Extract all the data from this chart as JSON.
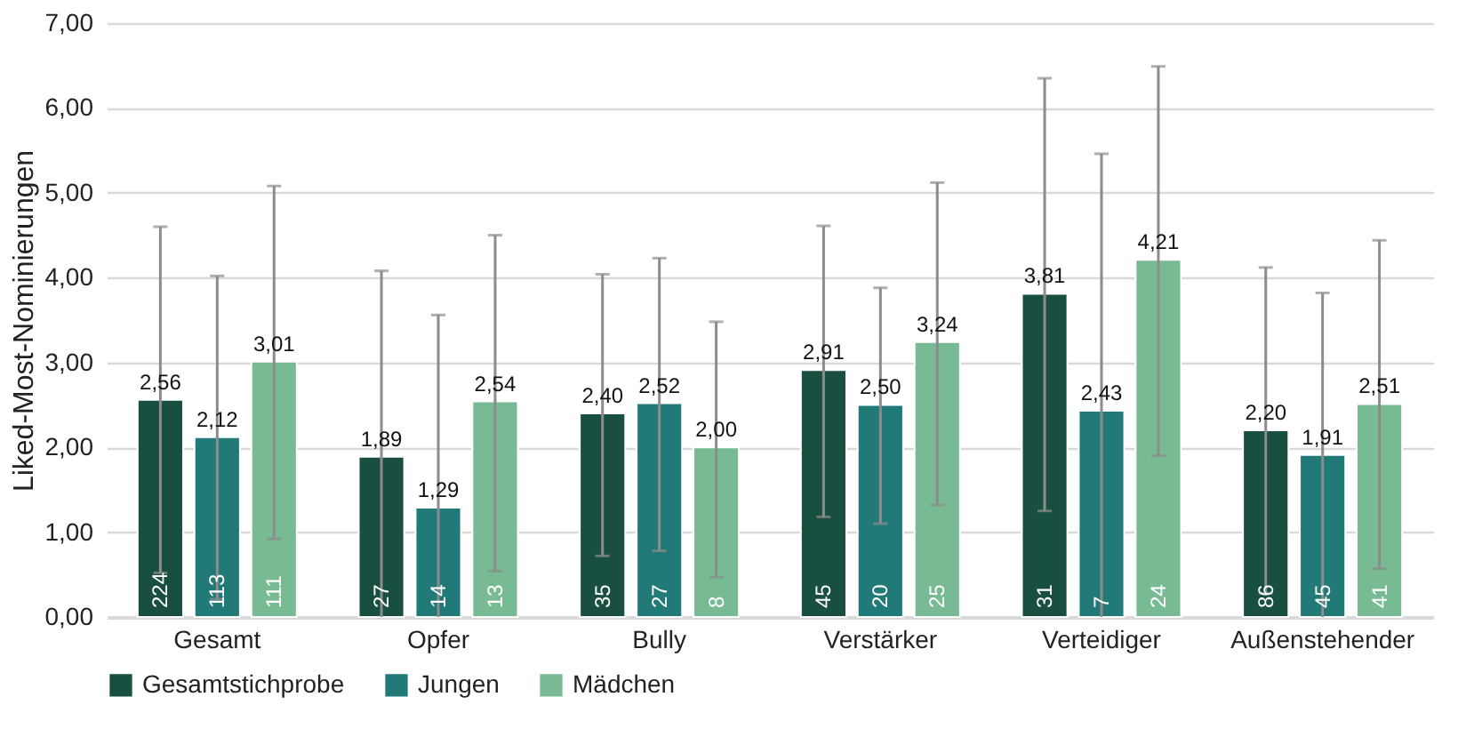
{
  "chart_data": {
    "type": "bar",
    "ylabel": "Liked-Most-Nominierungen",
    "categories": [
      "Gesamt",
      "Opfer",
      "Bully",
      "Verstärker",
      "Verteidiger",
      "Außenstehender"
    ],
    "series": [
      {
        "name": "Gesamtstichprobe",
        "color": "#184f40",
        "values": [
          2.56,
          1.89,
          2.4,
          2.91,
          3.81,
          2.2
        ],
        "value_labels": [
          "2,56",
          "1,89",
          "2,40",
          "2,91",
          "3,81",
          "2,20"
        ],
        "errors": [
          [
            0.52,
            4.6
          ],
          [
            0,
            4.08
          ],
          [
            0.72,
            4.04
          ],
          [
            1.18,
            4.61
          ],
          [
            1.25,
            6.35
          ],
          [
            0.28,
            4.12
          ]
        ]
      },
      {
        "name": "Jungen",
        "color": "#217a78",
        "values": [
          2.12,
          1.29,
          2.52,
          2.5,
          2.43,
          1.91
        ],
        "value_labels": [
          "2,12",
          "1,29",
          "2,52",
          "2,50",
          "2,43",
          "1,91"
        ],
        "errors": [
          [
            0.21,
            4.02
          ],
          [
            0,
            3.56
          ],
          [
            0.78,
            4.23
          ],
          [
            1.1,
            3.88
          ],
          [
            0,
            5.46
          ],
          [
            0,
            3.82
          ]
        ]
      },
      {
        "name": "Mädchen",
        "color": "#78ba94",
        "values": [
          3.01,
          2.54,
          2.0,
          3.24,
          4.21,
          2.51
        ],
        "value_labels": [
          "3,01",
          "2,54",
          "2,00",
          "3,24",
          "4,21",
          "2,51"
        ],
        "errors": [
          [
            0.92,
            5.08
          ],
          [
            0.54,
            4.5
          ],
          [
            0.47,
            3.48
          ],
          [
            1.32,
            5.12
          ],
          [
            1.9,
            6.49
          ],
          [
            0.57,
            4.44
          ]
        ]
      }
    ],
    "annotations": [
      {
        "text": "224",
        "x": "Gesamt",
        "y": 0
      },
      {
        "text": "113",
        "x": "Gesamt",
        "y": 0
      },
      {
        "text": "111",
        "x": "Gesamt",
        "y": 0
      },
      {
        "text": "27",
        "x": "Opfer",
        "y": 0
      },
      {
        "text": "14",
        "x": "Opfer",
        "y": 0
      },
      {
        "text": "13",
        "x": "Opfer",
        "y": 0
      },
      {
        "text": "35",
        "x": "Bully",
        "y": 0
      },
      {
        "text": "27",
        "x": "Bully",
        "y": 0
      },
      {
        "text": "8",
        "x": "Bully",
        "y": 0
      },
      {
        "text": "45",
        "x": "Verstärker",
        "y": 0
      },
      {
        "text": "20",
        "x": "Verstärker",
        "y": 0
      },
      {
        "text": "25",
        "x": "Verstärker",
        "y": 0
      },
      {
        "text": "31",
        "x": "Verteidiger",
        "y": 0
      },
      {
        "text": "7",
        "x": "Verteidiger",
        "y": 0
      },
      {
        "text": "24",
        "x": "Verteidiger",
        "y": 0
      },
      {
        "text": "86",
        "x": "Außenstehender",
        "y": 0
      },
      {
        "text": "45",
        "x": "Außenstehender",
        "y": 0
      },
      {
        "text": "41",
        "x": "Außenstehender",
        "y": 0
      }
    ],
    "ylim": [
      0,
      7
    ],
    "yticks": [
      {
        "value": 0,
        "label": "0,00"
      },
      {
        "value": 1,
        "label": "1,00"
      },
      {
        "value": 2,
        "label": "2,00"
      },
      {
        "value": 3,
        "label": "3,00"
      },
      {
        "value": 4,
        "label": "4,00"
      },
      {
        "value": 5,
        "label": "5,00"
      },
      {
        "value": 6,
        "label": "6,00"
      },
      {
        "value": 7,
        "label": "7,00"
      }
    ],
    "grid": "y",
    "legend": "bottom"
  }
}
